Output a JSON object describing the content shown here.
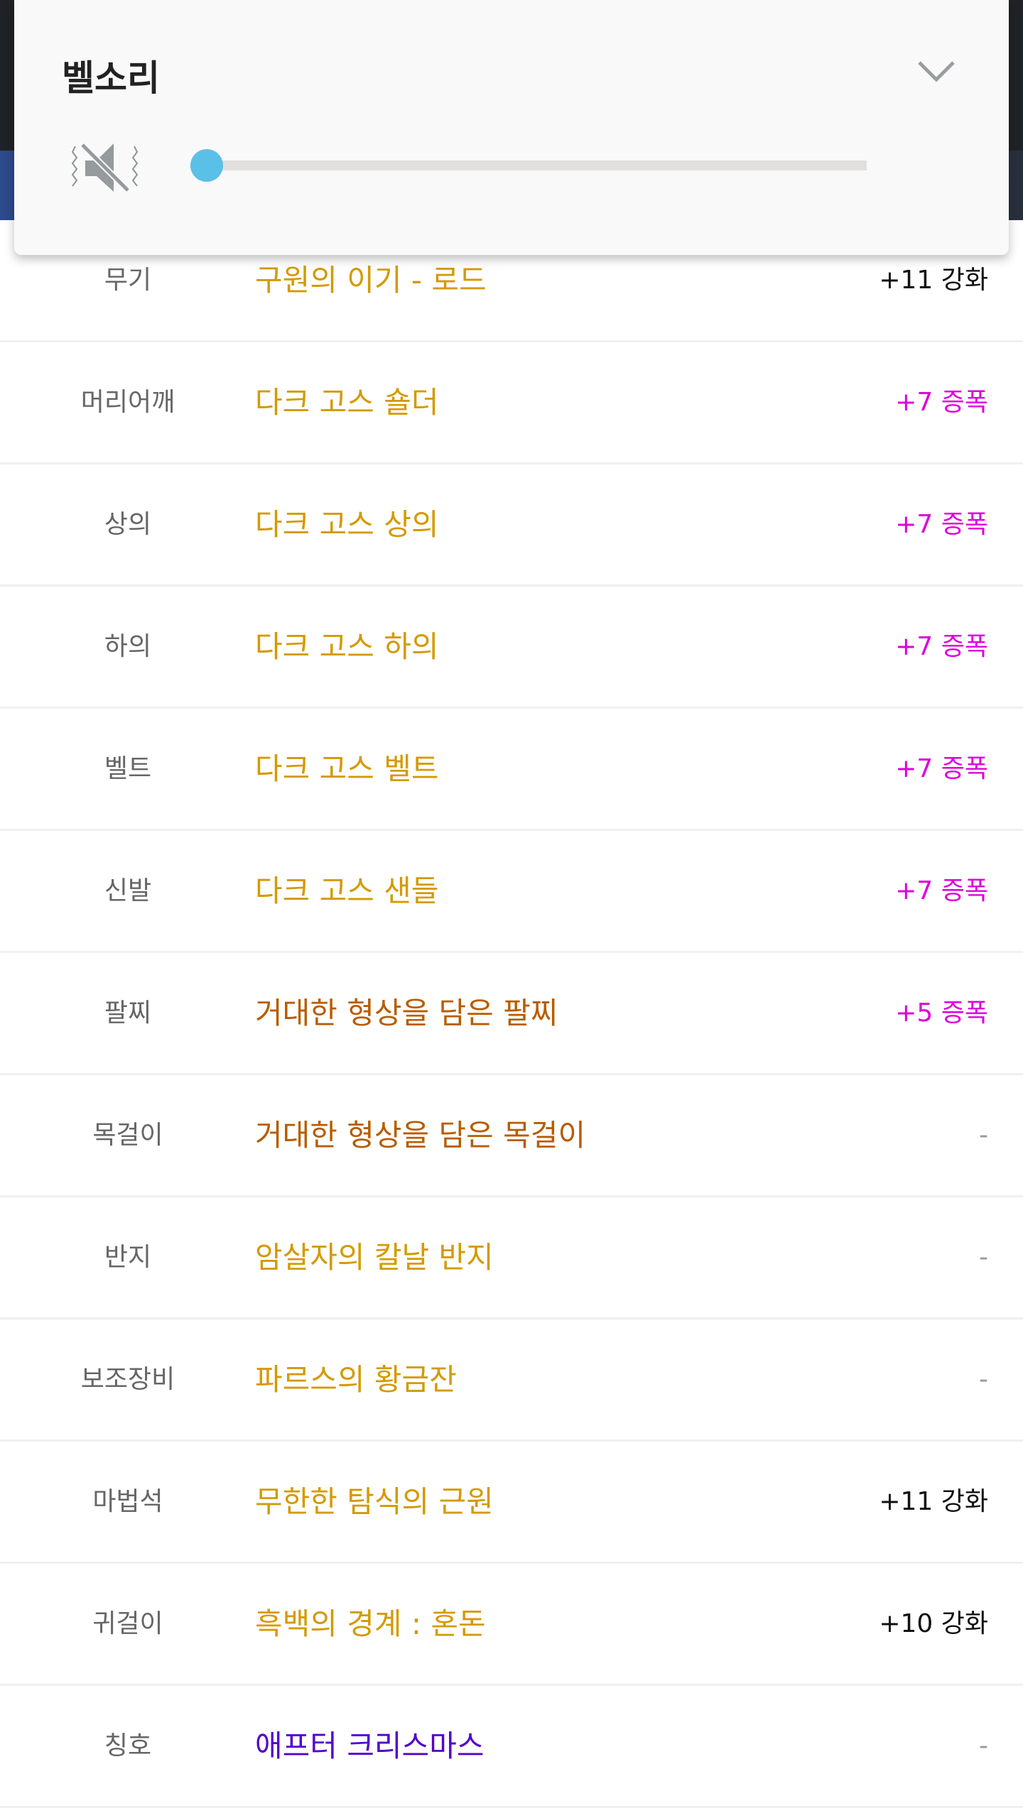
{
  "sound_panel": {
    "title": "벨소리",
    "volume_percent": 0,
    "muted": true,
    "icons": {
      "mute": "speaker-muted-vibrate-icon",
      "expand": "chevron-down-icon"
    },
    "thumb_color": "#5bc0e8"
  },
  "equipment": [
    {
      "slot": "무기",
      "item": "구원의 이기 - 로드",
      "item_color": "#d49a00",
      "bonus": "+11 강화",
      "bonus_color": "#111111"
    },
    {
      "slot": "머리어깨",
      "item": "다크 고스 숄더",
      "item_color": "#d49a00",
      "bonus": "+7 증폭",
      "bonus_color": "#dd00dd"
    },
    {
      "slot": "상의",
      "item": "다크 고스 상의",
      "item_color": "#d49a00",
      "bonus": "+7 증폭",
      "bonus_color": "#dd00dd"
    },
    {
      "slot": "하의",
      "item": "다크 고스 하의",
      "item_color": "#d49a00",
      "bonus": "+7 증폭",
      "bonus_color": "#dd00dd"
    },
    {
      "slot": "벨트",
      "item": "다크 고스 벨트",
      "item_color": "#d49a00",
      "bonus": "+7 증폭",
      "bonus_color": "#dd00dd"
    },
    {
      "slot": "신발",
      "item": "다크 고스 샌들",
      "item_color": "#d49a00",
      "bonus": "+7 증폭",
      "bonus_color": "#dd00dd"
    },
    {
      "slot": "팔찌",
      "item": "거대한 형상을 담은 팔찌",
      "item_color": "#b85c00",
      "bonus": "+5 증폭",
      "bonus_color": "#dd00dd"
    },
    {
      "slot": "목걸이",
      "item": "거대한 형상을 담은 목걸이",
      "item_color": "#b85c00",
      "bonus": "-",
      "bonus_color": "#999999"
    },
    {
      "slot": "반지",
      "item": "암살자의 칼날 반지",
      "item_color": "#d49a00",
      "bonus": "-",
      "bonus_color": "#999999"
    },
    {
      "slot": "보조장비",
      "item": "파르스의 황금잔",
      "item_color": "#d49a00",
      "bonus": "-",
      "bonus_color": "#999999"
    },
    {
      "slot": "마법석",
      "item": "무한한 탐식의 근원",
      "item_color": "#d49a00",
      "bonus": "+11 강화",
      "bonus_color": "#111111"
    },
    {
      "slot": "귀걸이",
      "item": "흑백의 경계 : 혼돈",
      "item_color": "#d49a00",
      "bonus": "+10 강화",
      "bonus_color": "#111111"
    },
    {
      "slot": "칭호",
      "item": "애프터 크리스마스",
      "item_color": "#5500cc",
      "bonus": "-",
      "bonus_color": "#999999"
    }
  ]
}
